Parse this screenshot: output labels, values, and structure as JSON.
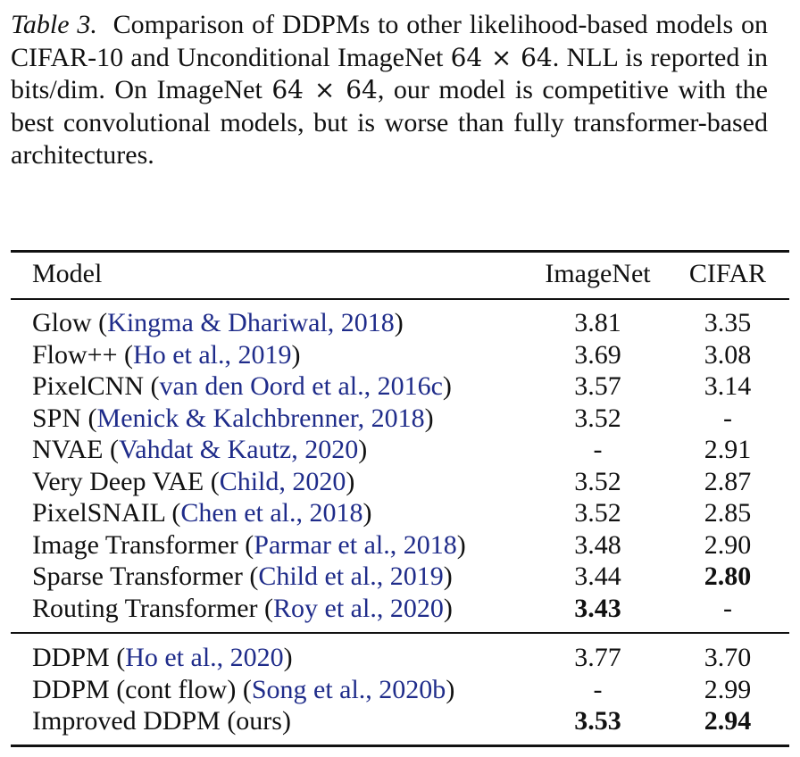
{
  "caption": {
    "label": "Table 3.",
    "part1": "Comparison of DDPMs to other likelihood-based models on CIFAR-10 and Unconditional ImageNet ",
    "math1": "64 × 64",
    "part2": ". NLL is reported in bits/dim. On ImageNet ",
    "math2": "64 × 64",
    "part3": ", our model is competitive with the best convolutional models, but is worse than fully transformer-based architectures."
  },
  "table": {
    "headers": {
      "model": "Model",
      "imagenet": "ImageNet",
      "cifar": "CIFAR"
    },
    "group1": [
      {
        "name": "Glow",
        "cite": "Kingma & Dhariwal, 2018",
        "imagenet": "3.81",
        "cifar": "3.35"
      },
      {
        "name": "Flow++",
        "cite": "Ho et al., 2019",
        "imagenet": "3.69",
        "cifar": "3.08"
      },
      {
        "name": "PixelCNN",
        "cite": "van den Oord et al., 2016c",
        "imagenet": "3.57",
        "cifar": "3.14"
      },
      {
        "name": "SPN",
        "cite": "Menick & Kalchbrenner, 2018",
        "imagenet": "3.52",
        "cifar": "-"
      },
      {
        "name": "NVAE",
        "cite": "Vahdat & Kautz, 2020",
        "imagenet": "-",
        "cifar": "2.91"
      },
      {
        "name": "Very Deep VAE",
        "cite": "Child, 2020",
        "imagenet": "3.52",
        "cifar": "2.87"
      },
      {
        "name": "PixelSNAIL",
        "cite": "Chen et al., 2018",
        "imagenet": "3.52",
        "cifar": "2.85"
      },
      {
        "name": "Image Transformer",
        "cite": "Parmar et al., 2018",
        "imagenet": "3.48",
        "cifar": "2.90"
      },
      {
        "name": "Sparse Transformer",
        "cite": "Child et al., 2019",
        "imagenet": "3.44",
        "cifar": "2.80"
      },
      {
        "name": "Routing Transformer",
        "cite": "Roy et al., 2020",
        "imagenet": "3.43",
        "cifar": "-"
      }
    ],
    "group2": [
      {
        "name": "DDPM",
        "cite": "Ho et al., 2020",
        "imagenet": "3.77",
        "cifar": "3.70"
      },
      {
        "name": "DDPM (cont flow)",
        "cite": "Song et al., 2020b",
        "imagenet": "-",
        "cifar": "2.99"
      },
      {
        "name": "Improved DDPM (ours)",
        "cite": "",
        "imagenet": "3.53",
        "cifar": "2.94"
      }
    ]
  }
}
